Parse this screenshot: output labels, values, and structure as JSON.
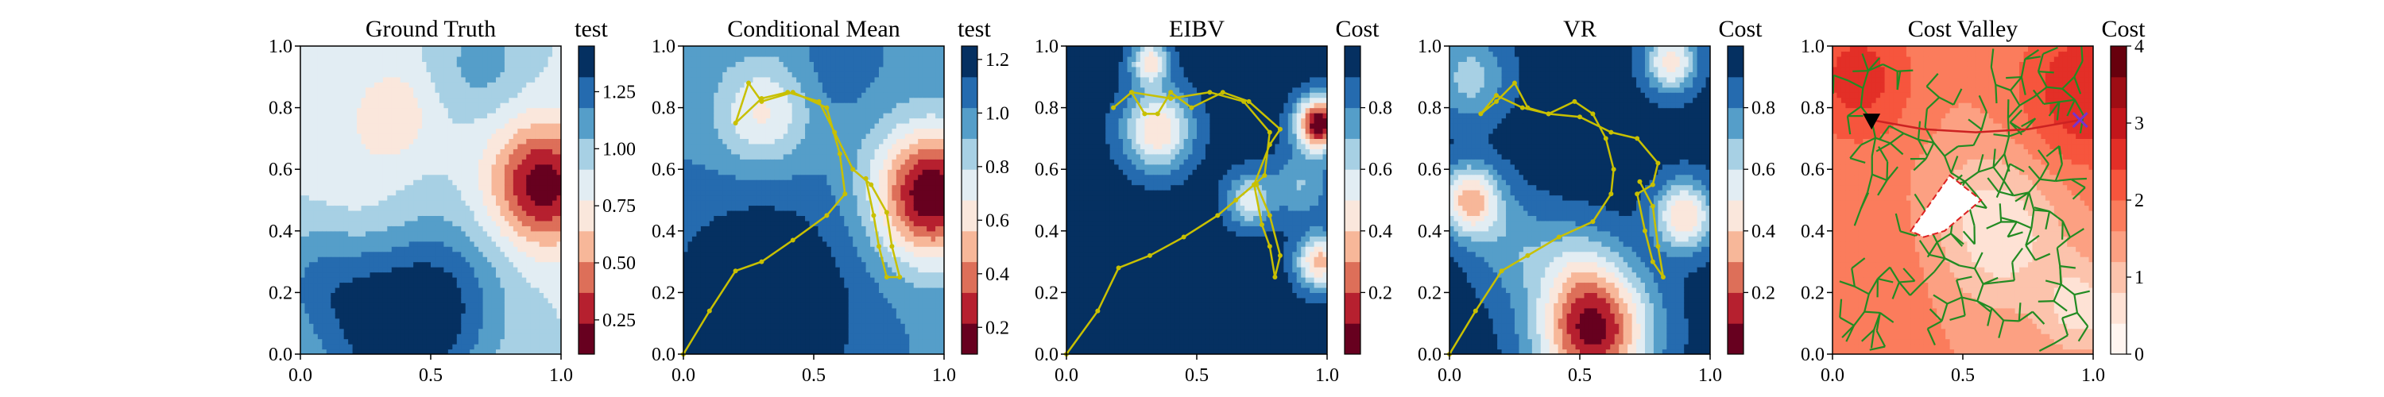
{
  "figure": {
    "panel_count": 5
  },
  "chart_data": [
    {
      "type": "heatmap",
      "title": "Ground Truth",
      "colorbar_label": "test",
      "xlim": [
        0,
        1
      ],
      "ylim": [
        0,
        1
      ],
      "x_ticks": [
        "0.0",
        "0.5",
        "1.0"
      ],
      "y_ticks": [
        "0.0",
        "0.2",
        "0.4",
        "0.6",
        "0.8",
        "1.0"
      ],
      "colorbar_range": [
        0.1,
        1.45
      ],
      "colorbar_ticks": [
        "0.25",
        "0.50",
        "0.75",
        "1.00",
        "1.25"
      ],
      "colorbar_tick_values": [
        0.25,
        0.5,
        0.75,
        1.0,
        1.25
      ],
      "colormap": "RdBu",
      "field": {
        "base": 0.9,
        "features": [
          {
            "x": 0.93,
            "y": 0.55,
            "amp": -0.75,
            "r": 0.14
          },
          {
            "x": 0.35,
            "y": 0.05,
            "amp": 0.45,
            "r": 0.2
          },
          {
            "x": 0.55,
            "y": 0.2,
            "amp": 0.3,
            "r": 0.18
          },
          {
            "x": 0.08,
            "y": 0.25,
            "amp": 0.25,
            "r": 0.15
          },
          {
            "x": 0.35,
            "y": 0.78,
            "amp": -0.25,
            "r": 0.1
          },
          {
            "x": 0.7,
            "y": 0.95,
            "amp": 0.2,
            "r": 0.12
          },
          {
            "x": 0.2,
            "y": 0.5,
            "amp": -0.1,
            "r": 0.15
          }
        ]
      }
    },
    {
      "type": "heatmap",
      "title": "Conditional Mean",
      "colorbar_label": "test",
      "xlim": [
        0,
        1
      ],
      "ylim": [
        0,
        1
      ],
      "x_ticks": [
        "0.0",
        "0.5",
        "1.0"
      ],
      "y_ticks": [
        "0.0",
        "0.2",
        "0.4",
        "0.6",
        "0.8",
        "1.0"
      ],
      "colorbar_range": [
        0.1,
        1.25
      ],
      "colorbar_ticks": [
        "0.2",
        "0.4",
        "0.6",
        "0.8",
        "1.0",
        "1.2"
      ],
      "colorbar_tick_values": [
        0.2,
        0.4,
        0.6,
        0.8,
        1.0,
        1.2
      ],
      "colormap": "RdBu",
      "field": {
        "base": 1.0,
        "features": [
          {
            "x": 0.95,
            "y": 0.52,
            "amp": -0.9,
            "r": 0.15
          },
          {
            "x": 0.3,
            "y": 0.78,
            "amp": -0.35,
            "r": 0.12
          },
          {
            "x": 0.3,
            "y": 0.15,
            "amp": 0.35,
            "r": 0.25
          },
          {
            "x": 0.6,
            "y": 0.95,
            "amp": 0.1,
            "r": 0.1
          }
        ]
      },
      "path": {
        "color": "#c8c000",
        "points": [
          [
            0.0,
            0.0
          ],
          [
            0.1,
            0.14
          ],
          [
            0.2,
            0.27
          ],
          [
            0.3,
            0.3
          ],
          [
            0.42,
            0.37
          ],
          [
            0.55,
            0.45
          ],
          [
            0.62,
            0.52
          ],
          [
            0.6,
            0.65
          ],
          [
            0.55,
            0.8
          ],
          [
            0.42,
            0.85
          ],
          [
            0.3,
            0.82
          ],
          [
            0.25,
            0.88
          ],
          [
            0.2,
            0.75
          ],
          [
            0.3,
            0.83
          ],
          [
            0.4,
            0.85
          ],
          [
            0.52,
            0.82
          ],
          [
            0.58,
            0.72
          ],
          [
            0.65,
            0.6
          ],
          [
            0.72,
            0.55
          ],
          [
            0.78,
            0.46
          ],
          [
            0.8,
            0.35
          ],
          [
            0.83,
            0.25
          ],
          [
            0.78,
            0.25
          ],
          [
            0.75,
            0.35
          ],
          [
            0.73,
            0.45
          ],
          [
            0.7,
            0.57
          ]
        ]
      }
    },
    {
      "type": "heatmap",
      "title": "EIBV",
      "colorbar_label": "Cost",
      "xlim": [
        0,
        1
      ],
      "ylim": [
        0,
        1
      ],
      "x_ticks": [
        "0.0",
        "0.5",
        "1.0"
      ],
      "y_ticks": [
        "0.0",
        "0.2",
        "0.4",
        "0.6",
        "0.8",
        "1.0"
      ],
      "colorbar_range": [
        0.0,
        1.0
      ],
      "colorbar_ticks": [
        "0.2",
        "0.4",
        "0.6",
        "0.8"
      ],
      "colorbar_tick_values": [
        0.2,
        0.4,
        0.6,
        0.8
      ],
      "colormap": "RdBu",
      "field": {
        "base": 0.95,
        "features": [
          {
            "x": 0.97,
            "y": 0.75,
            "amp": -0.95,
            "r": 0.06
          },
          {
            "x": 0.35,
            "y": 0.73,
            "amp": -0.55,
            "r": 0.09
          },
          {
            "x": 0.32,
            "y": 0.95,
            "amp": -0.5,
            "r": 0.05
          },
          {
            "x": 0.7,
            "y": 0.5,
            "amp": -0.4,
            "r": 0.06
          },
          {
            "x": 0.97,
            "y": 0.3,
            "amp": -0.6,
            "r": 0.06
          },
          {
            "x": 0.9,
            "y": 0.55,
            "amp": -0.25,
            "r": 0.08
          }
        ]
      },
      "path": {
        "color": "#c8c000",
        "points": [
          [
            0.0,
            0.0
          ],
          [
            0.12,
            0.14
          ],
          [
            0.2,
            0.28
          ],
          [
            0.32,
            0.32
          ],
          [
            0.45,
            0.38
          ],
          [
            0.58,
            0.45
          ],
          [
            0.65,
            0.5
          ],
          [
            0.72,
            0.55
          ],
          [
            0.78,
            0.68
          ],
          [
            0.82,
            0.73
          ],
          [
            0.7,
            0.82
          ],
          [
            0.6,
            0.85
          ],
          [
            0.48,
            0.8
          ],
          [
            0.4,
            0.85
          ],
          [
            0.35,
            0.78
          ],
          [
            0.3,
            0.78
          ],
          [
            0.25,
            0.85
          ],
          [
            0.18,
            0.8
          ],
          [
            0.25,
            0.85
          ],
          [
            0.4,
            0.83
          ],
          [
            0.55,
            0.85
          ],
          [
            0.68,
            0.82
          ],
          [
            0.78,
            0.72
          ],
          [
            0.76,
            0.58
          ],
          [
            0.72,
            0.55
          ],
          [
            0.75,
            0.42
          ],
          [
            0.78,
            0.35
          ],
          [
            0.8,
            0.25
          ],
          [
            0.82,
            0.32
          ],
          [
            0.78,
            0.45
          ],
          [
            0.73,
            0.55
          ]
        ]
      }
    },
    {
      "type": "heatmap",
      "title": "VR",
      "colorbar_label": "Cost",
      "xlim": [
        0,
        1
      ],
      "ylim": [
        0,
        1
      ],
      "x_ticks": [
        "0.0",
        "0.5",
        "1.0"
      ],
      "y_ticks": [
        "0.0",
        "0.2",
        "0.4",
        "0.6",
        "0.8",
        "1.0"
      ],
      "colorbar_range": [
        0.0,
        1.0
      ],
      "colorbar_ticks": [
        "0.2",
        "0.4",
        "0.6",
        "0.8"
      ],
      "colorbar_tick_values": [
        0.2,
        0.4,
        0.6,
        0.8
      ],
      "colormap": "RdBu",
      "field": {
        "base": 0.95,
        "features": [
          {
            "x": 0.55,
            "y": 0.08,
            "amp": -0.9,
            "r": 0.15
          },
          {
            "x": 0.08,
            "y": 0.5,
            "amp": -0.6,
            "r": 0.08
          },
          {
            "x": 0.9,
            "y": 0.45,
            "amp": -0.55,
            "r": 0.08
          },
          {
            "x": 0.85,
            "y": 0.95,
            "amp": -0.5,
            "r": 0.07
          },
          {
            "x": 0.08,
            "y": 0.9,
            "amp": -0.3,
            "r": 0.1
          },
          {
            "x": 0.25,
            "y": 0.35,
            "amp": -0.2,
            "r": 0.12
          },
          {
            "x": 0.5,
            "y": 0.3,
            "amp": -0.15,
            "r": 0.1
          }
        ]
      },
      "path": {
        "color": "#c8c000",
        "points": [
          [
            0.0,
            0.0
          ],
          [
            0.1,
            0.14
          ],
          [
            0.2,
            0.27
          ],
          [
            0.3,
            0.32
          ],
          [
            0.42,
            0.38
          ],
          [
            0.55,
            0.43
          ],
          [
            0.62,
            0.52
          ],
          [
            0.63,
            0.6
          ],
          [
            0.6,
            0.7
          ],
          [
            0.55,
            0.78
          ],
          [
            0.48,
            0.82
          ],
          [
            0.38,
            0.78
          ],
          [
            0.3,
            0.8
          ],
          [
            0.25,
            0.88
          ],
          [
            0.18,
            0.82
          ],
          [
            0.12,
            0.78
          ],
          [
            0.18,
            0.84
          ],
          [
            0.28,
            0.8
          ],
          [
            0.38,
            0.78
          ],
          [
            0.5,
            0.77
          ],
          [
            0.62,
            0.72
          ],
          [
            0.72,
            0.7
          ],
          [
            0.8,
            0.62
          ],
          [
            0.78,
            0.55
          ],
          [
            0.72,
            0.52
          ],
          [
            0.75,
            0.4
          ],
          [
            0.78,
            0.3
          ],
          [
            0.82,
            0.25
          ],
          [
            0.8,
            0.35
          ],
          [
            0.78,
            0.48
          ],
          [
            0.73,
            0.56
          ]
        ]
      }
    },
    {
      "type": "heatmap",
      "title": "Cost Valley",
      "colorbar_label": "Cost",
      "xlim": [
        0,
        1
      ],
      "ylim": [
        0,
        1
      ],
      "x_ticks": [
        "0.0",
        "0.5",
        "1.0"
      ],
      "y_ticks": [
        "0.0",
        "0.2",
        "0.4",
        "0.6",
        "0.8",
        "1.0"
      ],
      "colorbar_range": [
        0,
        4
      ],
      "colorbar_ticks": [
        "0",
        "1",
        "2",
        "3",
        "4"
      ],
      "colorbar_tick_values": [
        0,
        1,
        2,
        3,
        4
      ],
      "colormap": "Reds",
      "field": {
        "base": 1.6,
        "features": [
          {
            "x": 0.97,
            "y": 0.85,
            "amp": 1.2,
            "r": 0.18
          },
          {
            "x": 0.1,
            "y": 0.9,
            "amp": 1.0,
            "r": 0.15
          },
          {
            "x": 0.62,
            "y": 0.4,
            "amp": -1.2,
            "r": 0.18
          },
          {
            "x": 0.95,
            "y": 0.15,
            "amp": -1.0,
            "r": 0.1
          },
          {
            "x": 0.3,
            "y": 0.3,
            "amp": 0.3,
            "r": 0.2
          }
        ]
      },
      "obstacle_region": {
        "color": "#dd2222",
        "points": [
          [
            0.3,
            0.4
          ],
          [
            0.45,
            0.58
          ],
          [
            0.57,
            0.5
          ],
          [
            0.43,
            0.4
          ],
          [
            0.35,
            0.38
          ]
        ]
      },
      "start_marker": {
        "x": 0.15,
        "y": 0.76,
        "color": "#000000"
      },
      "target_marker": {
        "x": 0.95,
        "y": 0.76,
        "color": "#7733cc"
      },
      "planned_path": {
        "color": "#cc2222",
        "points": [
          [
            0.15,
            0.76
          ],
          [
            0.35,
            0.73
          ],
          [
            0.55,
            0.72
          ],
          [
            0.75,
            0.73
          ],
          [
            0.95,
            0.76
          ]
        ]
      },
      "tree": {
        "color": "#228b22",
        "seed": 7,
        "branch_count": 260
      }
    }
  ]
}
